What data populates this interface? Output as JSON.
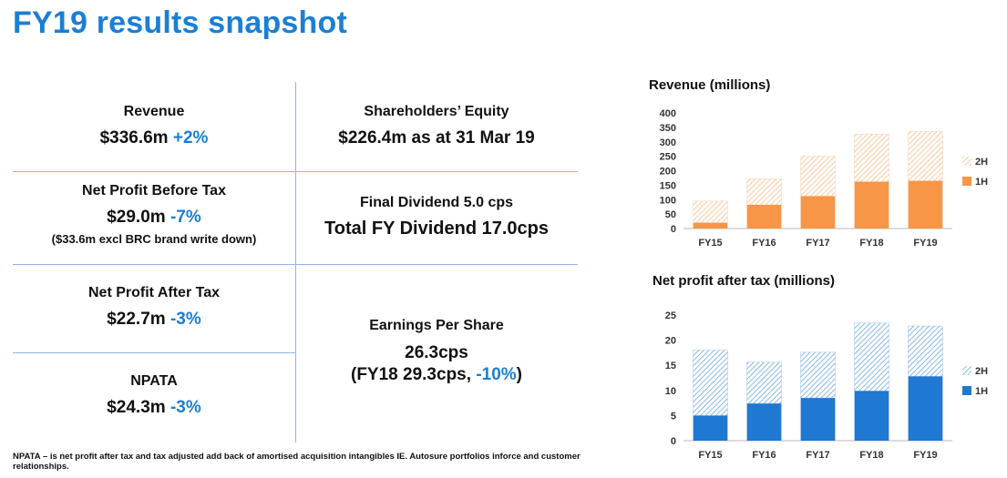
{
  "page": {
    "title": "FY19 results snapshot"
  },
  "metrics": {
    "revenue": {
      "label": "Revenue",
      "value": "$336.6m",
      "change": "+2%"
    },
    "equity": {
      "label": "Shareholders’ Equity",
      "value": "$226.4m as at 31 Mar 19"
    },
    "npbt": {
      "label": "Net Profit Before Tax",
      "value": "$29.0m",
      "change": "-7%",
      "note": "($33.6m excl BRC brand write down)"
    },
    "dividend": {
      "final": "Final Dividend 5.0 cps",
      "total": "Total FY Dividend 17.0cps"
    },
    "npat": {
      "label": "Net Profit After Tax",
      "value": "$22.7m",
      "change": "-3%"
    },
    "eps": {
      "label": "Earnings Per Share",
      "value": "26.3cps",
      "comparison_prefix": "(FY18 29.3cps,",
      "change": "-10%",
      "comparison_suffix": ")"
    },
    "npata": {
      "label": "NPATA",
      "value": "$24.3m",
      "change": "-3%"
    }
  },
  "footnote": "NPATA – is net profit after tax and tax adjusted add back of amortised acquisition intangibles IE. Autosure portfolios inforce and customer relationships.",
  "colors": {
    "accent": "#1b7fd3",
    "orange": "#f79646",
    "blue": "#1f78d1"
  },
  "chart_data": [
    {
      "type": "bar",
      "stacked": true,
      "title": "Revenue (millions)",
      "categories": [
        "FY15",
        "FY16",
        "FY17",
        "FY18",
        "FY19"
      ],
      "series": [
        {
          "name": "1H",
          "values": [
            20,
            82,
            112,
            162,
            165
          ],
          "color": "#f79646",
          "fill": "solid"
        },
        {
          "name": "2H",
          "values": [
            75,
            90,
            138,
            165,
            170
          ],
          "color": "#f79646",
          "fill": "hatched"
        }
      ],
      "ylim": [
        0,
        400
      ],
      "yticks": [
        "0",
        "50",
        "100",
        "150",
        "200",
        "250",
        "300",
        "350",
        "400"
      ],
      "legend": "right",
      "grid": false
    },
    {
      "type": "bar",
      "stacked": true,
      "title": "Net profit after tax (millions)",
      "categories": [
        "FY15",
        "FY16",
        "FY17",
        "FY18",
        "FY19"
      ],
      "series": [
        {
          "name": "1H",
          "values": [
            5.0,
            7.4,
            8.5,
            9.9,
            12.8
          ],
          "color": "#1f78d1",
          "fill": "solid"
        },
        {
          "name": "2H",
          "values": [
            13.0,
            8.2,
            9.1,
            13.5,
            10.0
          ],
          "color": "#1f78d1",
          "fill": "hatched"
        }
      ],
      "ylim": [
        0,
        25
      ],
      "yticks": [
        "0",
        "5",
        "10",
        "15",
        "20",
        "25"
      ],
      "legend": "right",
      "grid": false
    }
  ]
}
